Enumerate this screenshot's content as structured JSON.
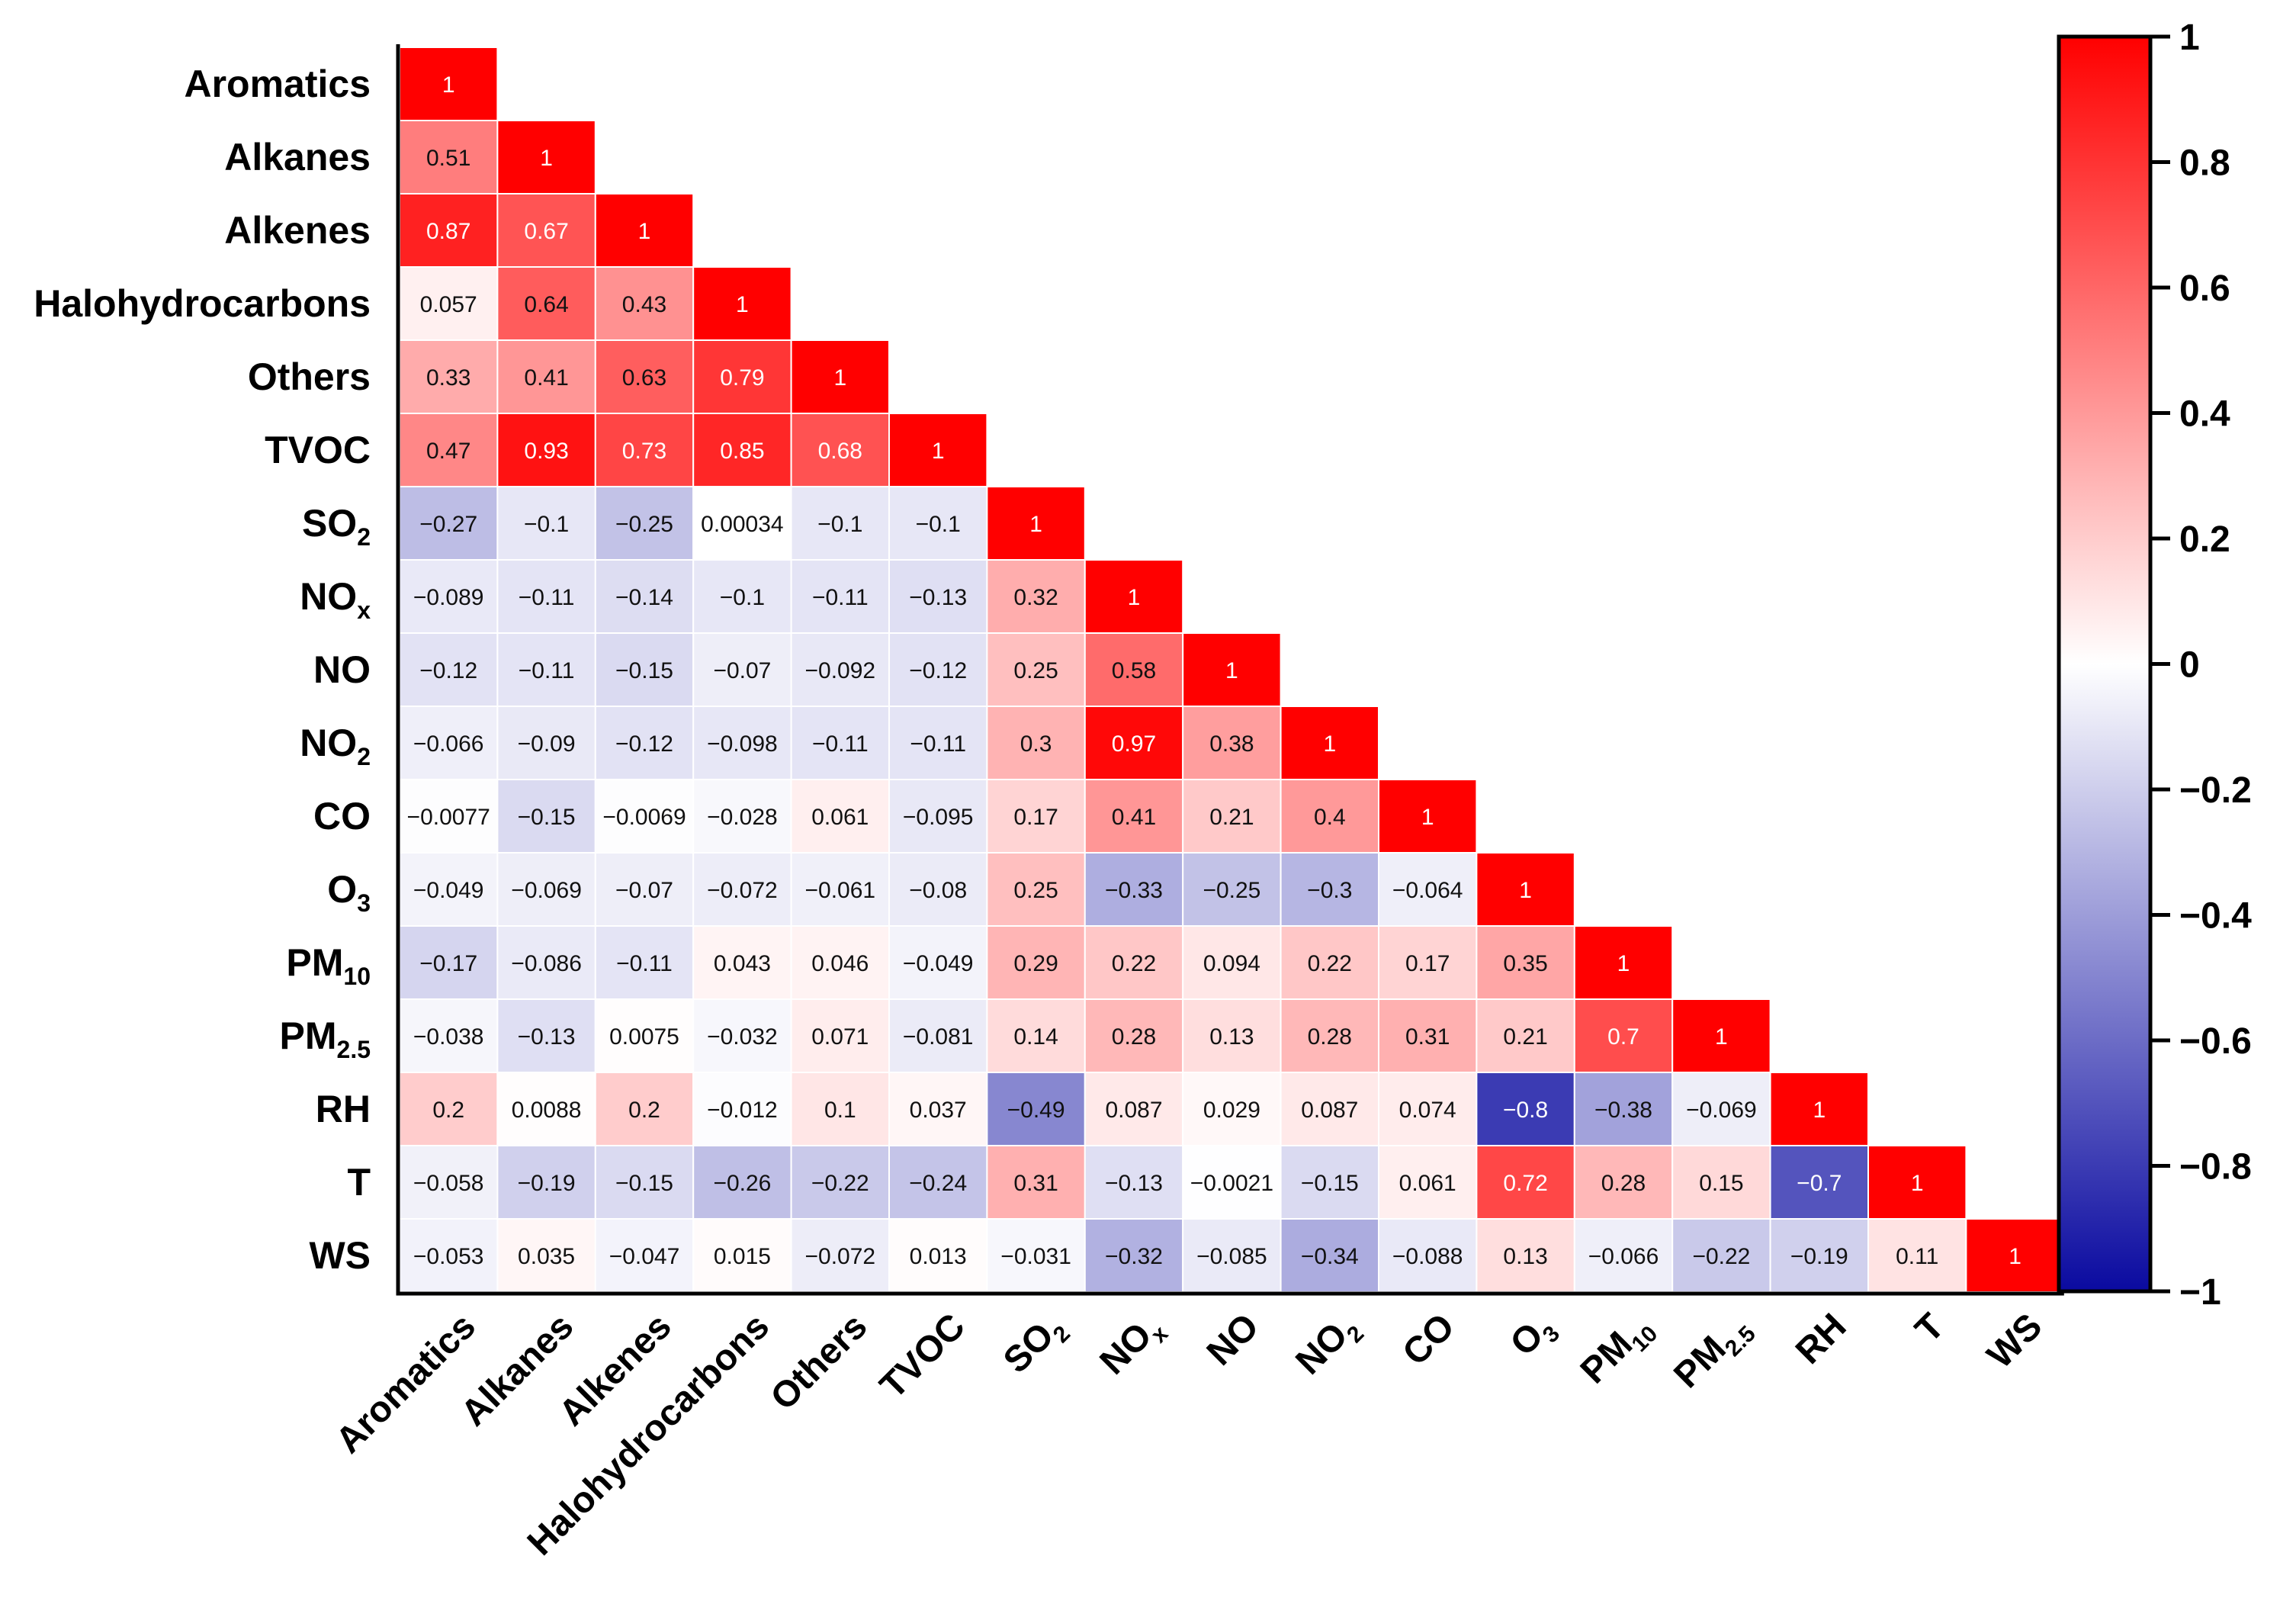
{
  "chart_data": {
    "type": "heatmap",
    "title": "",
    "variables": [
      "Aromatics",
      "Alkanes",
      "Alkenes",
      "Halohydrocarbons",
      "Others",
      "TVOC",
      "SO2",
      "NOx",
      "NO",
      "NO2",
      "CO",
      "O3",
      "PM10",
      "PM2.5",
      "RH",
      "T",
      "WS"
    ],
    "variable_labels": [
      {
        "base": "Aromatics",
        "sub": ""
      },
      {
        "base": "Alkanes",
        "sub": ""
      },
      {
        "base": "Alkenes",
        "sub": ""
      },
      {
        "base": "Halohydrocarbons",
        "sub": ""
      },
      {
        "base": "Others",
        "sub": ""
      },
      {
        "base": "TVOC",
        "sub": ""
      },
      {
        "base": "SO",
        "sub": "2"
      },
      {
        "base": "NO",
        "sub": "x"
      },
      {
        "base": "NO",
        "sub": ""
      },
      {
        "base": "NO",
        "sub": "2"
      },
      {
        "base": "CO",
        "sub": ""
      },
      {
        "base": "O",
        "sub": "3"
      },
      {
        "base": "PM",
        "sub": "10"
      },
      {
        "base": "PM",
        "sub": "2.5"
      },
      {
        "base": "RH",
        "sub": ""
      },
      {
        "base": "T",
        "sub": ""
      },
      {
        "base": "WS",
        "sub": ""
      }
    ],
    "matrix_lower": [
      [
        "1"
      ],
      [
        "0.51",
        "1"
      ],
      [
        "0.87",
        "0.67",
        "1"
      ],
      [
        "0.057",
        "0.64",
        "0.43",
        "1"
      ],
      [
        "0.33",
        "0.41",
        "0.63",
        "0.79",
        "1"
      ],
      [
        "0.47",
        "0.93",
        "0.73",
        "0.85",
        "0.68",
        "1"
      ],
      [
        "−0.27",
        "−0.1",
        "−0.25",
        "0.00034",
        "−0.1",
        "−0.1",
        "1"
      ],
      [
        "−0.089",
        "−0.11",
        "−0.14",
        "−0.1",
        "−0.11",
        "−0.13",
        "0.32",
        "1"
      ],
      [
        "−0.12",
        "−0.11",
        "−0.15",
        "−0.07",
        "−0.092",
        "−0.12",
        "0.25",
        "0.58",
        "1"
      ],
      [
        "−0.066",
        "−0.09",
        "−0.12",
        "−0.098",
        "−0.11",
        "−0.11",
        "0.3",
        "0.97",
        "0.38",
        "1"
      ],
      [
        "−0.0077",
        "−0.15",
        "−0.0069",
        "−0.028",
        "0.061",
        "−0.095",
        "0.17",
        "0.41",
        "0.21",
        "0.4",
        "1"
      ],
      [
        "−0.049",
        "−0.069",
        "−0.07",
        "−0.072",
        "−0.061",
        "−0.08",
        "0.25",
        "−0.33",
        "−0.25",
        "−0.3",
        "−0.064",
        "1"
      ],
      [
        "−0.17",
        "−0.086",
        "−0.11",
        "0.043",
        "0.046",
        "−0.049",
        "0.29",
        "0.22",
        "0.094",
        "0.22",
        "0.17",
        "0.35",
        "1"
      ],
      [
        "−0.038",
        "−0.13",
        "0.0075",
        "−0.032",
        "0.071",
        "−0.081",
        "0.14",
        "0.28",
        "0.13",
        "0.28",
        "0.31",
        "0.21",
        "0.7",
        "1"
      ],
      [
        "0.2",
        "0.0088",
        "0.2",
        "−0.012",
        "0.1",
        "0.037",
        "−0.49",
        "0.087",
        "0.029",
        "0.087",
        "0.074",
        "−0.8",
        "−0.38",
        "−0.069",
        "1"
      ],
      [
        "−0.058",
        "−0.19",
        "−0.15",
        "−0.26",
        "−0.22",
        "−0.24",
        "0.31",
        "−0.13",
        "−0.0021",
        "−0.15",
        "0.061",
        "0.72",
        "0.28",
        "0.15",
        "−0.7",
        "1"
      ],
      [
        "−0.053",
        "0.035",
        "−0.047",
        "0.015",
        "−0.072",
        "0.013",
        "−0.031",
        "−0.32",
        "−0.085",
        "−0.34",
        "−0.088",
        "0.13",
        "−0.066",
        "−0.22",
        "−0.19",
        "0.11",
        "1"
      ]
    ],
    "color_scale": {
      "min": -1,
      "max": 1,
      "low_color": "#0a0aa0",
      "mid_color": "#ffffff",
      "high_color": "#ff0000",
      "ticks": [
        "1",
        "0.8",
        "0.6",
        "0.4",
        "0.2",
        "0",
        "−0.2",
        "−0.4",
        "−0.6",
        "−0.8",
        "−1"
      ]
    },
    "legend_position": "right"
  }
}
